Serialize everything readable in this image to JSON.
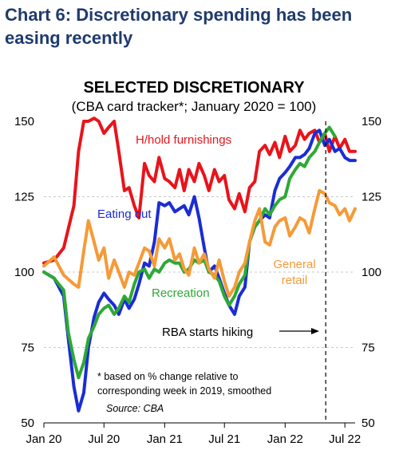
{
  "page": {
    "title_line1": "Chart 6: Discretionary spending has been",
    "title_line2": "easing recently"
  },
  "chart_data": {
    "type": "line",
    "title": "SELECTED DISCRETIONARY",
    "subtitle": "(CBA card tracker*; January 2020 = 100)",
    "ylim": [
      50,
      150
    ],
    "yticks": [
      50,
      75,
      100,
      125,
      150
    ],
    "xlim": [
      "2020-01",
      "2022-08"
    ],
    "xticks": [
      {
        "label": "Jan 20",
        "x": "2020-01"
      },
      {
        "label": "Jul 20",
        "x": "2020-07"
      },
      {
        "label": "Jan 21",
        "x": "2021-01"
      },
      {
        "label": "Jul 21",
        "x": "2021-07"
      },
      {
        "label": "Jan 22",
        "x": "2022-01"
      },
      {
        "label": "Jul 22",
        "x": "2022-07"
      }
    ],
    "grid": true,
    "series": [
      {
        "name": "H/hold furnishings",
        "color": "#e8141b",
        "x": [
          "2020-01-01",
          "2020-02-01",
          "2020-03-01",
          "2020-04-01",
          "2020-04-15",
          "2020-05-01",
          "2020-05-15",
          "2020-06-01",
          "2020-06-15",
          "2020-07-01",
          "2020-07-15",
          "2020-08-01",
          "2020-08-15",
          "2020-09-01",
          "2020-09-15",
          "2020-10-01",
          "2020-10-15",
          "2020-11-01",
          "2020-11-15",
          "2020-12-01",
          "2020-12-15",
          "2021-01-01",
          "2021-01-15",
          "2021-02-01",
          "2021-02-15",
          "2021-03-01",
          "2021-03-15",
          "2021-04-01",
          "2021-04-15",
          "2021-05-01",
          "2021-05-15",
          "2021-06-01",
          "2021-06-15",
          "2021-07-01",
          "2021-07-15",
          "2021-08-01",
          "2021-08-15",
          "2021-09-01",
          "2021-09-15",
          "2021-10-01",
          "2021-10-15",
          "2021-11-01",
          "2021-11-15",
          "2021-12-01",
          "2021-12-15",
          "2022-01-01",
          "2022-01-15",
          "2022-02-01",
          "2022-02-15",
          "2022-03-01",
          "2022-03-15",
          "2022-04-01",
          "2022-04-15",
          "2022-05-01",
          "2022-05-15",
          "2022-06-01",
          "2022-06-15",
          "2022-07-01",
          "2022-07-15",
          "2022-08-01"
        ],
        "values": [
          103,
          104,
          108,
          122,
          140,
          150,
          150,
          151,
          150,
          146,
          148,
          150,
          140,
          127,
          128,
          122,
          118,
          136,
          132,
          130,
          138,
          131,
          130,
          128,
          134,
          127,
          134,
          130,
          136,
          132,
          127,
          134,
          130,
          132,
          124,
          121,
          126,
          120,
          128,
          130,
          140,
          142,
          139,
          143,
          138,
          145,
          140,
          142,
          147,
          144,
          146,
          147,
          143,
          146,
          140,
          145,
          141,
          144,
          140,
          140
        ]
      },
      {
        "name": "Eating out",
        "color": "#1a2dd4",
        "x": [
          "2020-01-01",
          "2020-02-01",
          "2020-03-01",
          "2020-03-15",
          "2020-04-01",
          "2020-04-15",
          "2020-05-01",
          "2020-05-15",
          "2020-06-01",
          "2020-06-15",
          "2020-07-01",
          "2020-07-15",
          "2020-08-01",
          "2020-08-15",
          "2020-09-01",
          "2020-09-15",
          "2020-10-01",
          "2020-10-15",
          "2020-11-01",
          "2020-11-15",
          "2020-12-01",
          "2020-12-15",
          "2021-01-01",
          "2021-01-15",
          "2021-02-01",
          "2021-02-15",
          "2021-03-01",
          "2021-03-15",
          "2021-04-01",
          "2021-04-15",
          "2021-05-01",
          "2021-05-15",
          "2021-06-01",
          "2021-06-15",
          "2021-07-01",
          "2021-07-15",
          "2021-08-01",
          "2021-08-15",
          "2021-09-01",
          "2021-09-15",
          "2021-10-01",
          "2021-10-15",
          "2021-11-01",
          "2021-11-15",
          "2021-12-01",
          "2021-12-15",
          "2022-01-01",
          "2022-01-15",
          "2022-02-01",
          "2022-02-15",
          "2022-03-01",
          "2022-03-15",
          "2022-04-01",
          "2022-04-15",
          "2022-05-01",
          "2022-05-15",
          "2022-06-01",
          "2022-06-15",
          "2022-07-01",
          "2022-07-15",
          "2022-08-01"
        ],
        "values": [
          100,
          98,
          92,
          78,
          62,
          54,
          60,
          75,
          85,
          90,
          93,
          91,
          89,
          86,
          91,
          88,
          91,
          96,
          103,
          102,
          110,
          123,
          122,
          123,
          120,
          121,
          122,
          119,
          125,
          118,
          108,
          100,
          102,
          98,
          93,
          89,
          86,
          92,
          95,
          110,
          115,
          117,
          119,
          118,
          127,
          131,
          133,
          135,
          138,
          138,
          139,
          141,
          146,
          147,
          142,
          144,
          140,
          141,
          138,
          137,
          137
        ]
      },
      {
        "name": "Recreation",
        "color": "#2ea836",
        "x": [
          "2020-01-01",
          "2020-02-01",
          "2020-03-01",
          "2020-03-15",
          "2020-04-01",
          "2020-04-15",
          "2020-05-01",
          "2020-05-15",
          "2020-06-01",
          "2020-06-15",
          "2020-07-01",
          "2020-07-15",
          "2020-08-01",
          "2020-08-15",
          "2020-09-01",
          "2020-09-15",
          "2020-10-01",
          "2020-10-15",
          "2020-11-01",
          "2020-11-15",
          "2020-12-01",
          "2020-12-15",
          "2021-01-01",
          "2021-01-15",
          "2021-02-01",
          "2021-02-15",
          "2021-03-01",
          "2021-03-15",
          "2021-04-01",
          "2021-04-15",
          "2021-05-01",
          "2021-05-15",
          "2021-06-01",
          "2021-06-15",
          "2021-07-01",
          "2021-07-15",
          "2021-08-01",
          "2021-08-15",
          "2021-09-01",
          "2021-09-15",
          "2021-10-01",
          "2021-10-15",
          "2021-11-01",
          "2021-11-15",
          "2021-12-01",
          "2021-12-15",
          "2022-01-01",
          "2022-01-15",
          "2022-02-01",
          "2022-02-15",
          "2022-03-01",
          "2022-03-15",
          "2022-04-01",
          "2022-04-15",
          "2022-05-01",
          "2022-05-15",
          "2022-06-01"
        ],
        "values": [
          100,
          98,
          94,
          80,
          71,
          65,
          70,
          78,
          82,
          86,
          88,
          89,
          86,
          88,
          92,
          90,
          96,
          100,
          101,
          98,
          101,
          100,
          103,
          104,
          103,
          103,
          100,
          101,
          104,
          103,
          104,
          100,
          99,
          97,
          92,
          89,
          92,
          96,
          99,
          110,
          115,
          117,
          121,
          119,
          122,
          124,
          125,
          131,
          134,
          136,
          135,
          138,
          140,
          143,
          146,
          148,
          145
        ]
      },
      {
        "name": "General retail",
        "color": "#f59a38",
        "x": [
          "2020-01-01",
          "2020-02-01",
          "2020-03-01",
          "2020-04-01",
          "2020-04-15",
          "2020-05-01",
          "2020-05-15",
          "2020-06-01",
          "2020-06-15",
          "2020-07-01",
          "2020-07-15",
          "2020-08-01",
          "2020-08-15",
          "2020-09-01",
          "2020-09-15",
          "2020-10-01",
          "2020-10-15",
          "2020-11-01",
          "2020-11-15",
          "2020-12-01",
          "2020-12-15",
          "2021-01-01",
          "2021-01-15",
          "2021-02-01",
          "2021-02-15",
          "2021-03-01",
          "2021-03-15",
          "2021-04-01",
          "2021-04-15",
          "2021-05-01",
          "2021-05-15",
          "2021-06-01",
          "2021-06-15",
          "2021-07-01",
          "2021-07-15",
          "2021-08-01",
          "2021-08-15",
          "2021-09-01",
          "2021-09-15",
          "2021-10-01",
          "2021-10-15",
          "2021-11-01",
          "2021-11-15",
          "2021-12-01",
          "2021-12-15",
          "2022-01-01",
          "2022-01-15",
          "2022-02-01",
          "2022-02-15",
          "2022-03-01",
          "2022-03-15",
          "2022-04-01",
          "2022-04-15",
          "2022-05-01",
          "2022-05-15",
          "2022-06-01",
          "2022-06-15",
          "2022-07-01",
          "2022-07-15",
          "2022-08-01"
        ],
        "values": [
          102,
          105,
          99,
          96,
          95,
          107,
          117,
          110,
          104,
          108,
          98,
          104,
          100,
          95,
          100,
          99,
          103,
          108,
          107,
          102,
          111,
          108,
          111,
          104,
          106,
          101,
          99,
          108,
          103,
          106,
          101,
          98,
          104,
          97,
          92,
          95,
          100,
          103,
          110,
          117,
          121,
          110,
          109,
          115,
          117,
          118,
          112,
          115,
          118,
          117,
          113,
          121,
          127,
          126,
          123,
          122,
          119,
          121,
          117,
          121
        ]
      }
    ],
    "labels": {
      "hhold": "H/hold furnishings",
      "eating": "Eating out",
      "recreation": "Recreation",
      "general_line1": "General",
      "general_line2": "retail"
    },
    "annotations": {
      "rba_text": "RBA starts hiking",
      "rba_date": "2022-05-04"
    },
    "footnote_line1": "*   based on % change relative to",
    "footnote_line2": "corresponding week in 2019, smoothed",
    "source": "Source: CBA"
  }
}
